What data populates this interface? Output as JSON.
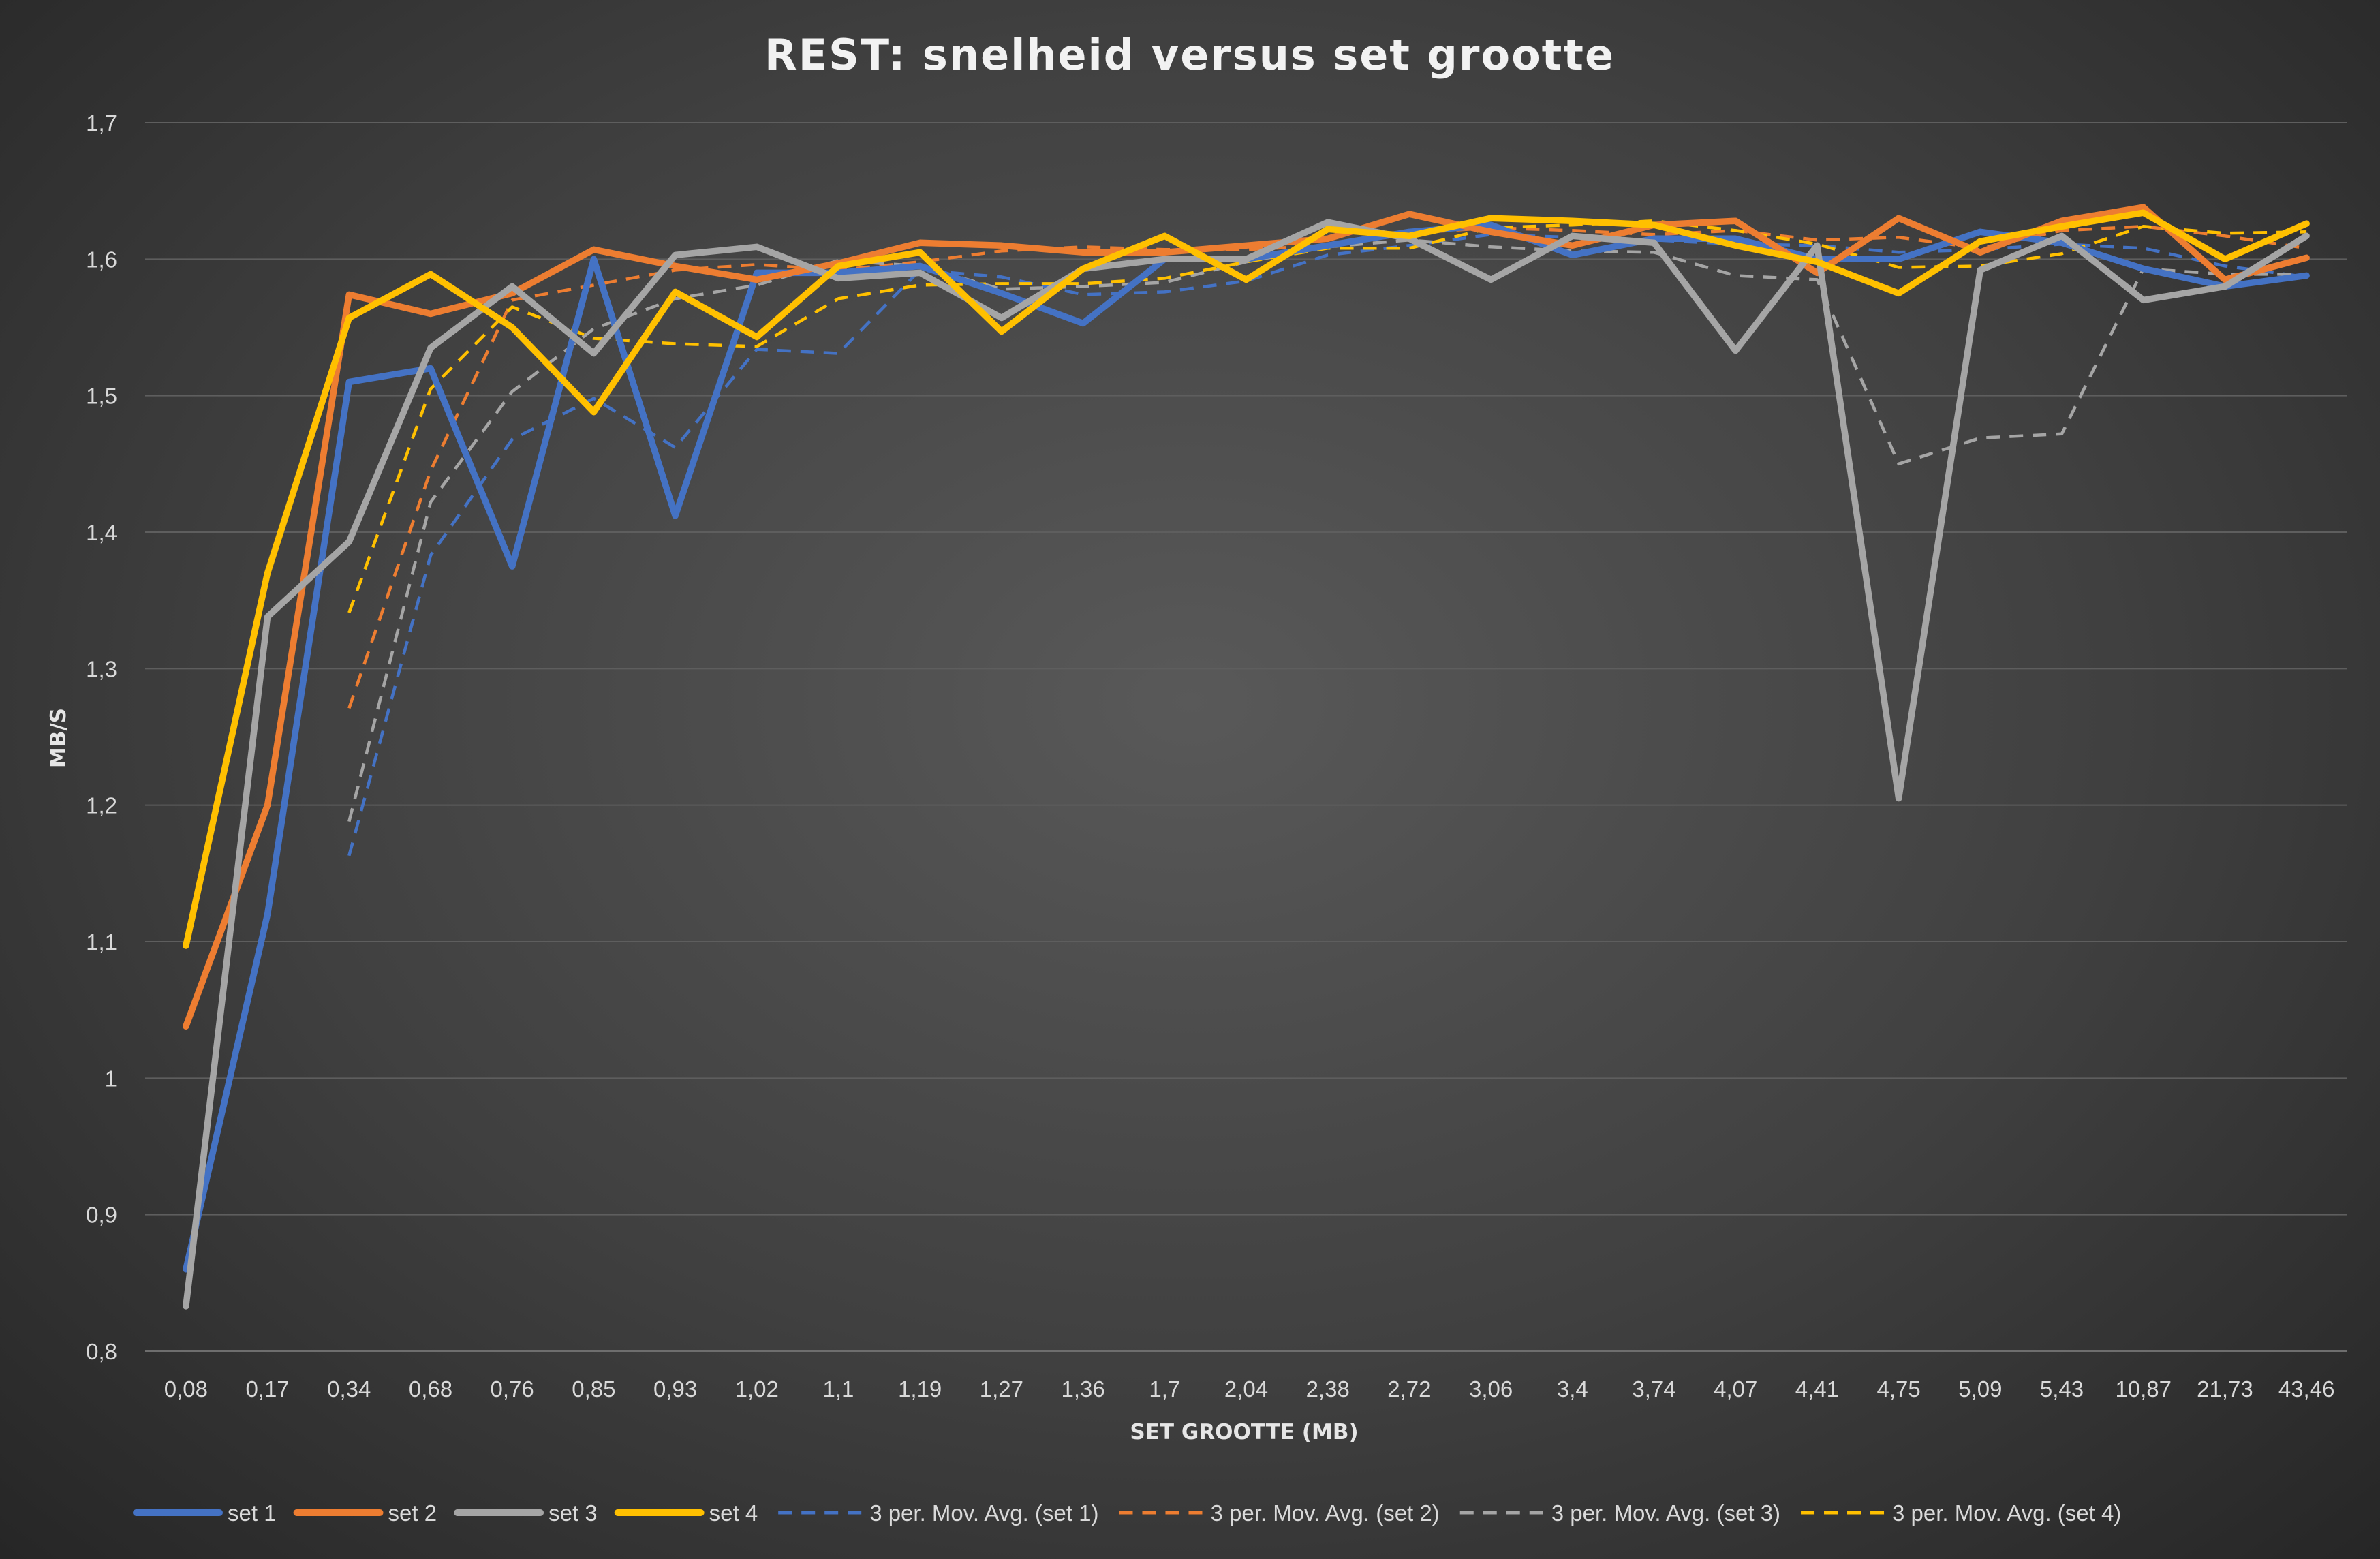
{
  "chart_data": {
    "type": "line",
    "title": "REST: snelheid versus set grootte",
    "xlabel": "SET GROOTTE (MB)",
    "ylabel": "MB/S",
    "ylim": [
      0.8,
      1.7
    ],
    "y_ticks": [
      "0,8",
      "0,9",
      "1",
      "1,1",
      "1,2",
      "1,3",
      "1,4",
      "1,5",
      "1,6",
      "1,7"
    ],
    "grid": true,
    "legend_position": "bottom",
    "categories": [
      "0,08",
      "0,17",
      "0,34",
      "0,68",
      "0,76",
      "0,85",
      "0,93",
      "1,02",
      "1,1",
      "1,19",
      "1,27",
      "1,36",
      "1,7",
      "2,04",
      "2,38",
      "2,72",
      "3,06",
      "3,4",
      "3,74",
      "4,07",
      "4,41",
      "4,75",
      "5,09",
      "5,43",
      "10,87",
      "21,73",
      "43,46"
    ],
    "series": [
      {
        "name": "set 1",
        "color": "#4472c4",
        "dashed": false,
        "values": [
          0.86,
          1.12,
          1.51,
          1.52,
          1.375,
          1.6,
          1.412,
          1.59,
          1.59,
          1.595,
          1.575,
          1.553,
          1.6,
          1.6,
          1.61,
          1.62,
          1.625,
          1.603,
          1.615,
          1.615,
          1.6,
          1.6,
          1.62,
          1.612,
          1.593,
          1.58,
          1.588
        ]
      },
      {
        "name": "set 2",
        "color": "#ed7d31",
        "dashed": false,
        "values": [
          1.038,
          1.2,
          1.574,
          1.56,
          1.575,
          1.607,
          1.595,
          1.585,
          1.597,
          1.612,
          1.61,
          1.605,
          1.605,
          1.61,
          1.615,
          1.633,
          1.62,
          1.61,
          1.625,
          1.628,
          1.59,
          1.63,
          1.605,
          1.628,
          1.638,
          1.585,
          1.601
        ]
      },
      {
        "name": "set 3",
        "color": "#a5a5a5",
        "dashed": false,
        "values": [
          0.833,
          1.338,
          1.393,
          1.535,
          1.58,
          1.531,
          1.603,
          1.609,
          1.586,
          1.59,
          1.557,
          1.593,
          1.6,
          1.6,
          1.627,
          1.615,
          1.585,
          1.617,
          1.612,
          1.533,
          1.61,
          1.205,
          1.592,
          1.617,
          1.57,
          1.58,
          1.617
        ]
      },
      {
        "name": "set 4",
        "color": "#ffc000",
        "dashed": false,
        "values": [
          1.097,
          1.37,
          1.557,
          1.589,
          1.55,
          1.488,
          1.576,
          1.543,
          1.595,
          1.605,
          1.547,
          1.593,
          1.617,
          1.585,
          1.622,
          1.617,
          1.63,
          1.628,
          1.625,
          1.61,
          1.598,
          1.575,
          1.613,
          1.624,
          1.634,
          1.6,
          1.626
        ]
      },
      {
        "name": "3 per. Mov. Avg. (set 1)",
        "color": "#4472c4",
        "dashed": true,
        "values": [
          null,
          null,
          1.163,
          1.383,
          1.468,
          1.498,
          1.462,
          1.534,
          1.531,
          1.592,
          1.587,
          1.574,
          1.576,
          1.584,
          1.603,
          1.61,
          1.618,
          1.616,
          1.614,
          1.611,
          1.61,
          1.605,
          1.607,
          1.611,
          1.608,
          1.595,
          1.587
        ]
      },
      {
        "name": "3 per. Mov. Avg. (set 2)",
        "color": "#ed7d31",
        "dashed": true,
        "values": [
          null,
          null,
          1.271,
          1.445,
          1.57,
          1.581,
          1.592,
          1.596,
          1.592,
          1.598,
          1.606,
          1.609,
          1.607,
          1.607,
          1.61,
          1.619,
          1.623,
          1.621,
          1.618,
          1.621,
          1.614,
          1.616,
          1.608,
          1.621,
          1.624,
          1.617,
          1.608
        ]
      },
      {
        "name": "3 per. Mov. Avg. (set 3)",
        "color": "#a5a5a5",
        "dashed": true,
        "values": [
          null,
          null,
          1.188,
          1.422,
          1.503,
          1.549,
          1.571,
          1.581,
          1.599,
          1.595,
          1.578,
          1.58,
          1.583,
          1.598,
          1.609,
          1.614,
          1.609,
          1.606,
          1.605,
          1.588,
          1.585,
          1.45,
          1.469,
          1.472,
          1.593,
          1.589,
          1.589
        ]
      },
      {
        "name": "3 per. Mov. Avg. (set 4)",
        "color": "#ffc000",
        "dashed": true,
        "values": [
          null,
          null,
          1.341,
          1.505,
          1.565,
          1.542,
          1.538,
          1.536,
          1.571,
          1.581,
          1.582,
          1.582,
          1.586,
          1.598,
          1.608,
          1.608,
          1.623,
          1.625,
          1.628,
          1.621,
          1.611,
          1.594,
          1.595,
          1.604,
          1.624,
          1.619,
          1.62
        ]
      }
    ]
  }
}
